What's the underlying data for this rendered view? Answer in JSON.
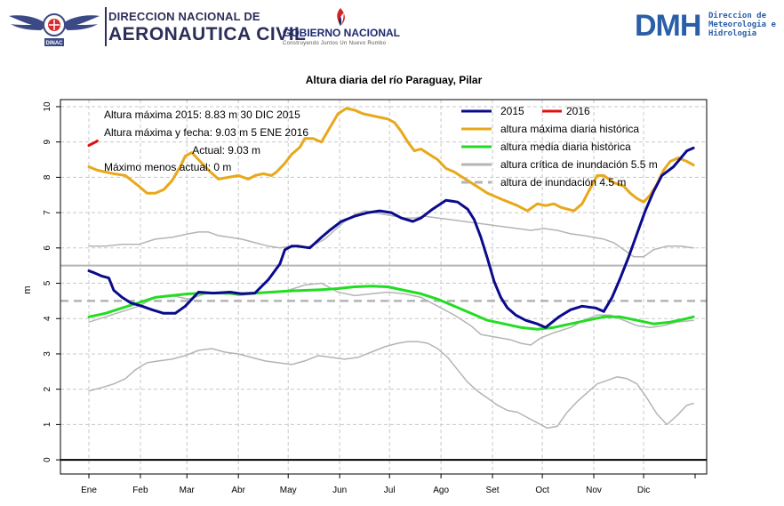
{
  "header": {
    "dnac_line1": "DIRECCION NACIONAL DE",
    "dnac_line2": "AERONAUTICA CIVIL",
    "dnac_badge": "DINAC",
    "gob_line1": "GOBIERNO NACIONAL",
    "gob_line2": "Construyendo Juntos Un Nuevo Rumbo",
    "dmh_letters": "DMH",
    "dmh_sub": [
      "Direccion de",
      "Meteorologia e",
      "Hidrologia"
    ]
  },
  "colors": {
    "y2015": "#0a0a8c",
    "y2016": "#e01010",
    "max_hist": "#e8a81a",
    "mean_hist": "#22dd22",
    "gray": "#b4b4b4",
    "dashed_ref": "#b4b4b4",
    "header_navy": "#2d2d5a",
    "dmh_blue": "#2a5fa8"
  },
  "chart_data": {
    "type": "line",
    "title": "Altura diaria del río Paraguay, Pilar",
    "xlabel": "",
    "ylabel": "m",
    "ylim": [
      -0.4,
      10.2
    ],
    "xlim": [
      0,
      365
    ],
    "yticks": [
      0,
      1,
      2,
      3,
      4,
      5,
      6,
      7,
      8,
      9,
      10
    ],
    "months": [
      "Ene",
      "Feb",
      "Mar",
      "Abr",
      "May",
      "Jun",
      "Jul",
      "Ago",
      "Set",
      "Oct",
      "Nov",
      "Dic"
    ],
    "month_days": [
      0,
      31,
      59,
      90,
      120,
      151,
      181,
      212,
      243,
      273,
      304,
      334
    ],
    "end_tick_day": 365,
    "grid": true,
    "annotations": [
      "Altura máxima 2015:    8.83 m 30 DIC 2015",
      "Altura máxima y fecha:  9.03 m 5 ENE 2016",
      "Actual: 9.03 m",
      "Máximo menos actual:  0 m"
    ],
    "legend": [
      {
        "label": "2015",
        "color": "#0a0a8c",
        "style": "solid"
      },
      {
        "label": "2016",
        "color": "#e01010",
        "style": "solid"
      },
      {
        "label": "altura máxima diaria histórica",
        "color": "#e8a81a",
        "style": "solid"
      },
      {
        "label": "altura media diaria histórica",
        "color": "#22dd22",
        "style": "solid"
      },
      {
        "label": "altura crítica de inundación 5.5 m",
        "color": "#b4b4b4",
        "style": "solid"
      },
      {
        "label": "altura de inundación  4.5 m",
        "color": "#b4b4b4",
        "style": "dashed"
      }
    ],
    "reference_lines": [
      {
        "name": "critica",
        "y": 5.5,
        "style": "solid",
        "color": "#b4b4b4"
      },
      {
        "name": "inundacion",
        "y": 4.5,
        "style": "dashed",
        "color": "#b4b4b4"
      },
      {
        "name": "cero",
        "y": 0,
        "style": "solid",
        "color": "#000000"
      }
    ],
    "series": [
      {
        "name": "2015",
        "color": "#0a0a8c",
        "width": 3,
        "x": [
          0,
          3,
          8,
          12,
          15,
          20,
          25,
          32,
          38,
          45,
          52,
          58,
          66,
          75,
          85,
          92,
          100,
          108,
          115,
          118,
          122,
          126,
          133,
          140,
          145,
          152,
          160,
          168,
          175,
          182,
          188,
          195,
          200,
          207,
          215,
          222,
          228,
          232,
          236,
          240,
          244,
          248,
          252,
          257,
          263,
          270,
          275,
          283,
          290,
          297,
          305,
          310,
          315,
          320,
          325,
          330,
          335,
          340,
          345,
          352,
          360,
          364
        ],
        "values": [
          5.35,
          5.3,
          5.2,
          5.15,
          4.8,
          4.6,
          4.45,
          4.35,
          4.25,
          4.15,
          4.15,
          4.35,
          4.75,
          4.72,
          4.75,
          4.7,
          4.72,
          5.1,
          5.55,
          5.95,
          6.05,
          6.05,
          6.0,
          6.3,
          6.5,
          6.75,
          6.9,
          7.0,
          7.05,
          7.0,
          6.85,
          6.75,
          6.85,
          7.1,
          7.35,
          7.3,
          7.1,
          6.8,
          6.3,
          5.7,
          5.05,
          4.6,
          4.3,
          4.1,
          3.95,
          3.85,
          3.75,
          4.05,
          4.25,
          4.35,
          4.3,
          4.2,
          4.6,
          5.15,
          5.75,
          6.4,
          7.05,
          7.6,
          8.05,
          8.3,
          8.75,
          8.83
        ]
      },
      {
        "name": "2016",
        "color": "#e01010",
        "width": 3,
        "x": [
          0,
          2,
          4,
          5
        ],
        "values": [
          8.9,
          8.95,
          9.0,
          9.03
        ]
      },
      {
        "name": "altura máxima diaria histórica",
        "color": "#e8a81a",
        "width": 3,
        "x": [
          0,
          5,
          15,
          22,
          30,
          35,
          40,
          45,
          50,
          55,
          58,
          62,
          66,
          72,
          78,
          84,
          90,
          96,
          100,
          105,
          110,
          113,
          118,
          122,
          127,
          130,
          135,
          140,
          145,
          150,
          155,
          160,
          165,
          170,
          175,
          180,
          184,
          188,
          192,
          196,
          200,
          205,
          210,
          215,
          220,
          225,
          230,
          235,
          240,
          245,
          250,
          258,
          264,
          270,
          275,
          280,
          284,
          288,
          292,
          297,
          302,
          306,
          310,
          316,
          322,
          326,
          330,
          334,
          338,
          342,
          346,
          350,
          355,
          360,
          364
        ],
        "values": [
          8.3,
          8.2,
          8.1,
          8.05,
          7.75,
          7.55,
          7.55,
          7.65,
          7.9,
          8.3,
          8.6,
          8.7,
          8.5,
          8.2,
          7.95,
          8.0,
          8.05,
          7.95,
          8.05,
          8.1,
          8.05,
          8.15,
          8.4,
          8.65,
          8.85,
          9.1,
          9.1,
          9.0,
          9.4,
          9.8,
          9.95,
          9.9,
          9.8,
          9.75,
          9.7,
          9.65,
          9.55,
          9.3,
          9.0,
          8.75,
          8.8,
          8.65,
          8.5,
          8.25,
          8.15,
          8.0,
          7.85,
          7.7,
          7.55,
          7.45,
          7.35,
          7.2,
          7.05,
          7.25,
          7.2,
          7.25,
          7.15,
          7.1,
          7.05,
          7.25,
          7.7,
          8.05,
          8.05,
          7.85,
          7.75,
          7.55,
          7.4,
          7.3,
          7.5,
          7.8,
          8.2,
          8.45,
          8.55,
          8.45,
          8.35
        ]
      },
      {
        "name": "altura media diaria histórica",
        "color": "#22dd22",
        "width": 3,
        "x": [
          0,
          10,
          20,
          30,
          40,
          50,
          60,
          70,
          80,
          90,
          100,
          110,
          120,
          130,
          140,
          150,
          160,
          170,
          180,
          190,
          200,
          210,
          220,
          230,
          240,
          250,
          260,
          270,
          280,
          290,
          300,
          310,
          320,
          330,
          340,
          350,
          360,
          364
        ],
        "values": [
          4.05,
          4.15,
          4.3,
          4.45,
          4.6,
          4.65,
          4.7,
          4.72,
          4.72,
          4.7,
          4.72,
          4.75,
          4.78,
          4.8,
          4.82,
          4.85,
          4.9,
          4.92,
          4.9,
          4.8,
          4.7,
          4.55,
          4.35,
          4.15,
          3.95,
          3.85,
          3.75,
          3.7,
          3.75,
          3.85,
          3.95,
          4.05,
          4.05,
          3.95,
          3.85,
          3.9,
          4.0,
          4.05
        ]
      },
      {
        "name": "gris superior",
        "color": "#b4b4b4",
        "width": 1.5,
        "x": [
          0,
          10,
          20,
          30,
          40,
          50,
          55,
          60,
          66,
          72,
          78,
          85,
          92,
          100,
          108,
          115,
          122,
          130,
          136,
          142,
          148,
          154,
          160,
          166,
          172,
          178,
          184,
          190,
          196,
          202,
          210,
          218,
          226,
          234,
          242,
          250,
          258,
          266,
          274,
          282,
          290,
          298,
          304,
          310,
          316,
          322,
          328,
          334,
          340,
          348,
          356,
          364
        ],
        "values": [
          6.05,
          6.05,
          6.1,
          6.1,
          6.25,
          6.3,
          6.35,
          6.4,
          6.45,
          6.45,
          6.35,
          6.3,
          6.25,
          6.15,
          6.05,
          6.0,
          6.05,
          6.0,
          6.1,
          6.25,
          6.5,
          6.75,
          6.95,
          7.05,
          7.0,
          6.95,
          6.9,
          6.85,
          6.85,
          6.9,
          6.85,
          6.8,
          6.75,
          6.7,
          6.65,
          6.6,
          6.55,
          6.5,
          6.55,
          6.5,
          6.4,
          6.35,
          6.3,
          6.25,
          6.15,
          5.95,
          5.75,
          5.75,
          5.95,
          6.05,
          6.05,
          6.0
        ]
      },
      {
        "name": "gris medio",
        "color": "#b4b4b4",
        "width": 1.5,
        "x": [
          0,
          10,
          20,
          30,
          40,
          50,
          60,
          70,
          80,
          90,
          100,
          110,
          120,
          130,
          140,
          150,
          160,
          170,
          180,
          190,
          200,
          210,
          220,
          230,
          236,
          242,
          248,
          254,
          260,
          266,
          272,
          280,
          290,
          298,
          306,
          314,
          322,
          330,
          338,
          346,
          354,
          364
        ],
        "values": [
          3.9,
          4.05,
          4.2,
          4.35,
          4.6,
          4.65,
          4.55,
          4.7,
          4.75,
          4.65,
          4.7,
          4.75,
          4.8,
          4.95,
          5.0,
          4.75,
          4.65,
          4.7,
          4.75,
          4.7,
          4.6,
          4.35,
          4.1,
          3.8,
          3.55,
          3.5,
          3.45,
          3.4,
          3.3,
          3.25,
          3.45,
          3.6,
          3.75,
          3.95,
          4.1,
          4.1,
          3.95,
          3.8,
          3.75,
          3.8,
          3.9,
          3.95
        ]
      },
      {
        "name": "gris inferior",
        "color": "#b4b4b4",
        "width": 1.5,
        "x": [
          0,
          8,
          15,
          22,
          28,
          35,
          42,
          50,
          58,
          66,
          74,
          82,
          90,
          98,
          106,
          114,
          122,
          130,
          138,
          146,
          154,
          162,
          170,
          178,
          186,
          192,
          198,
          204,
          210,
          216,
          222,
          228,
          234,
          240,
          246,
          252,
          258,
          264,
          270,
          276,
          282,
          288,
          294,
          300,
          306,
          312,
          318,
          324,
          330,
          336,
          342,
          348,
          354,
          360,
          364
        ],
        "values": [
          1.95,
          2.05,
          2.15,
          2.3,
          2.55,
          2.75,
          2.8,
          2.85,
          2.95,
          3.1,
          3.15,
          3.05,
          3.0,
          2.9,
          2.8,
          2.75,
          2.7,
          2.8,
          2.95,
          2.9,
          2.85,
          2.9,
          3.05,
          3.2,
          3.3,
          3.35,
          3.35,
          3.3,
          3.15,
          2.9,
          2.55,
          2.2,
          1.95,
          1.75,
          1.55,
          1.4,
          1.35,
          1.2,
          1.05,
          0.9,
          0.95,
          1.35,
          1.65,
          1.9,
          2.15,
          2.25,
          2.35,
          2.3,
          2.15,
          1.75,
          1.3,
          1.0,
          1.25,
          1.55,
          1.6
        ]
      }
    ]
  }
}
